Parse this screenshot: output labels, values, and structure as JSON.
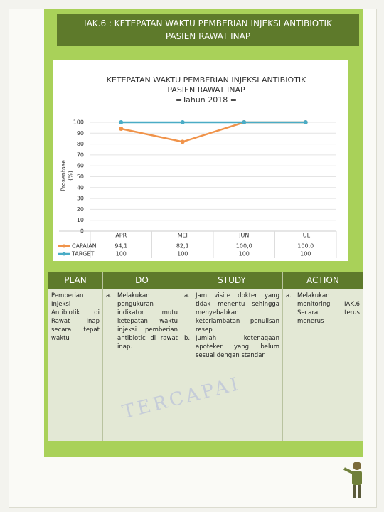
{
  "header": {
    "title": [
      "IAK.6 : KETEPATAN WAKTU PEMBERIAN INJEKSI ANTIBIOTIK",
      "PASIEN RAWAT INAP"
    ]
  },
  "chart_data": {
    "type": "line",
    "title": [
      "KETEPATAN WAKTU PEMBERIAN INJEKSI ANTIBIOTIK",
      "PASIEN RAWAT INAP",
      "=Tahun 2018 ="
    ],
    "y_label": [
      "Prosentase",
      "(%)"
    ],
    "categories": [
      "APR",
      "MEI",
      "JUN",
      "JUL"
    ],
    "series": [
      {
        "name": "CAPAIAN",
        "color": "#f0934a",
        "values": [
          94.1,
          82.1,
          100,
          100
        ],
        "value_labels": [
          "94,1",
          "82,1",
          "100,0",
          "100,0"
        ]
      },
      {
        "name": "TARGET",
        "color": "#4aacc6",
        "values": [
          100,
          100,
          100,
          100
        ]
      }
    ],
    "ylim": [
      0,
      100
    ],
    "yticks": [
      0,
      10,
      20,
      30,
      40,
      50,
      60,
      70,
      80,
      90,
      100
    ],
    "grid": true
  },
  "pdsa": {
    "headers": [
      "PLAN",
      "DO",
      "STUDY",
      "ACTION"
    ],
    "plan": "Pemberian Injeksi Antibiotik di Rawat Inap secara tepat waktu",
    "do": [
      {
        "marker": "a.",
        "text": "Melakukan pengukuran indikator mutu ketepatan waktu injeksi pemberian antibiotic di rawat inap."
      }
    ],
    "study": [
      {
        "marker": "a.",
        "text": "Jam visite dokter yang tidak menentu sehingga menyebabkan keterlambatan penulisan resep"
      },
      {
        "marker": "b.",
        "text": "Jumlah ketenagaan apoteker yang belum sesuai dengan standar"
      }
    ],
    "action": [
      {
        "marker": "a.",
        "text": "Melakukan monitoring IAK.6 Secara terus menerus"
      }
    ],
    "stamp": "TERCAPAI"
  }
}
